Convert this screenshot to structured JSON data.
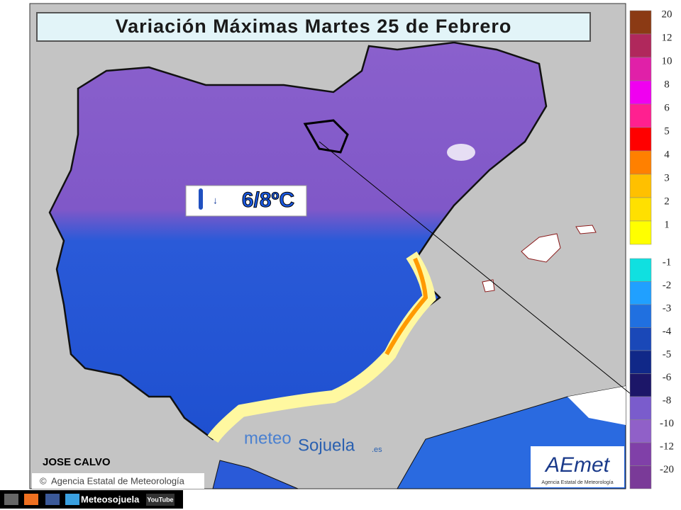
{
  "header": {
    "title": "Variación Máximas Martes 25 de Febrero"
  },
  "callout": {
    "text": "6/8ºC"
  },
  "legend": {
    "items": [
      {
        "label": "20",
        "color": "#8b3a14"
      },
      {
        "label": "12",
        "color": "#b0285c"
      },
      {
        "label": "10",
        "color": "#e020a8"
      },
      {
        "label": "8",
        "color": "#f000f0"
      },
      {
        "label": "6",
        "color": "#ff2090"
      },
      {
        "label": "5",
        "color": "#ff0000"
      },
      {
        "label": "4",
        "color": "#ff8000"
      },
      {
        "label": "3",
        "color": "#ffc000"
      },
      {
        "label": "2",
        "color": "#ffe000"
      },
      {
        "label": "1",
        "color": "#ffff00"
      },
      {
        "label": "-1",
        "color": "#10e0e0"
      },
      {
        "label": "-2",
        "color": "#20a0ff"
      },
      {
        "label": "-3",
        "color": "#2070e0"
      },
      {
        "label": "-4",
        "color": "#1a48b8"
      },
      {
        "label": "-5",
        "color": "#102888"
      },
      {
        "label": "-6",
        "color": "#1c1668"
      },
      {
        "label": "-8",
        "color": "#7a5ccc"
      },
      {
        "label": "-10",
        "color": "#9060c8"
      },
      {
        "label": "-12",
        "color": "#8040a8"
      },
      {
        "label": "-20",
        "color": "#7a3a98"
      }
    ]
  },
  "author": "JOSE CALVO",
  "credit": "Agencia Estatal de Meteorología",
  "watermark": {
    "part1": "meteo",
    "part2": "Sojuela",
    "suffix": ".es"
  },
  "logo": {
    "name": "AEmet",
    "caption": "Agencia Estatal de Meteorología"
  },
  "footer": {
    "channel": "Meteosojuela",
    "youtube": "YouTube"
  }
}
